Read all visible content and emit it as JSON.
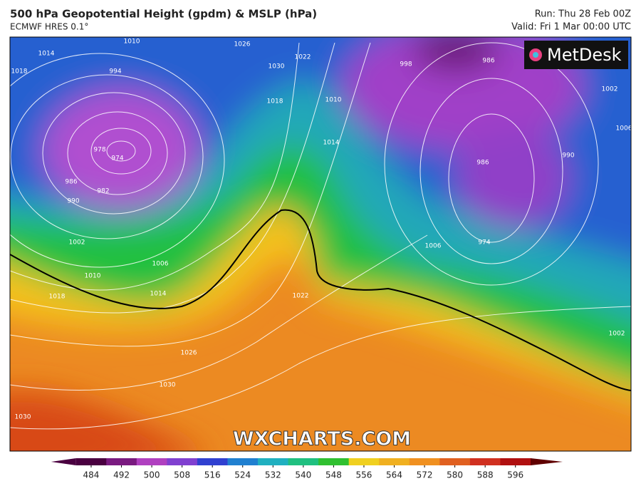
{
  "header": {
    "title": "500 hPa Geopotential Height (gpdm) & MSLP (hPa)",
    "subtitle": "ECMWF HRES 0.1°",
    "run": "Run: Thu 28 Feb 00Z",
    "valid": "Valid: Fri 1 Mar 00:00 UTC"
  },
  "logo": "MetDesk",
  "watermark": "WXCHARTS.COM",
  "isobar_labels": [
    1010,
    1014,
    1018,
    994,
    978,
    974,
    986,
    982,
    990,
    1002,
    1006,
    1010,
    1014,
    1018,
    1026,
    1030,
    1030,
    1018,
    1022,
    1030,
    1026,
    1010,
    1014,
    998,
    986,
    1002,
    1006,
    990,
    986,
    974,
    1006,
    1002,
    1022
  ],
  "colorbar": {
    "lim": [
      480,
      600
    ],
    "ticks": [
      484,
      492,
      500,
      508,
      516,
      524,
      532,
      540,
      548,
      556,
      564,
      572,
      580,
      588,
      596
    ],
    "colors": [
      "#4a0040",
      "#7a1a80",
      "#b040c0",
      "#8040d0",
      "#3040d0",
      "#2080d0",
      "#20b0c0",
      "#20c080",
      "#30c030",
      "#f0d020",
      "#f0b020",
      "#f09020",
      "#e06020",
      "#d03020",
      "#b01010"
    ]
  }
}
